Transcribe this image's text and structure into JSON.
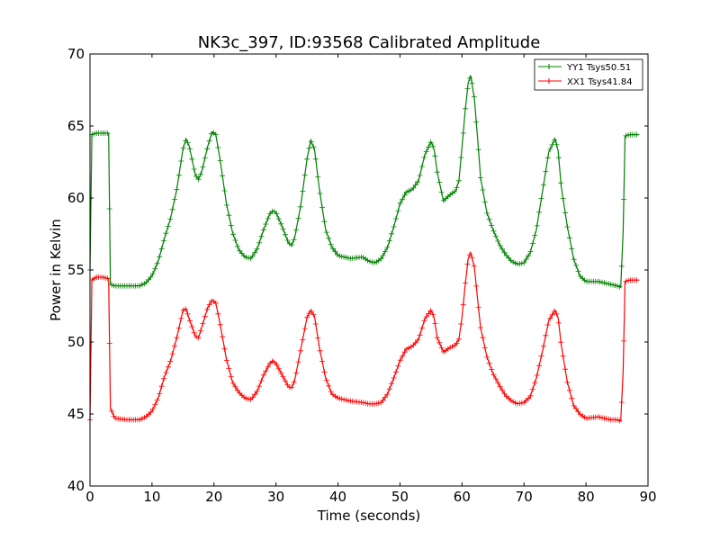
{
  "chart_data": {
    "type": "line",
    "title": "NK3c_397, ID:93568 Calibrated Amplitude",
    "xlabel": "Time (seconds)",
    "ylabel": "Power in Kelvin",
    "xlim": [
      0,
      90
    ],
    "ylim": [
      40,
      70
    ],
    "xticks": [
      0,
      10,
      20,
      30,
      40,
      50,
      60,
      70,
      80,
      90
    ],
    "yticks": [
      40,
      45,
      50,
      55,
      60,
      65,
      70
    ],
    "grid": false,
    "legend": "top-right",
    "marker": "+",
    "series": [
      {
        "name": "YY1 Tsys50.51",
        "color": "#008000",
        "points": [
          [
            0,
            55.0
          ],
          [
            0.3,
            64.4
          ],
          [
            1,
            64.5
          ],
          [
            2,
            64.5
          ],
          [
            3,
            64.5
          ],
          [
            3.3,
            54.0
          ],
          [
            4,
            53.9
          ],
          [
            6,
            53.9
          ],
          [
            8,
            53.9
          ],
          [
            9,
            54.1
          ],
          [
            10,
            54.6
          ],
          [
            11,
            55.6
          ],
          [
            12,
            57.2
          ],
          [
            13,
            58.6
          ],
          [
            14,
            60.6
          ],
          [
            15,
            63.4
          ],
          [
            15.5,
            64.1
          ],
          [
            16,
            63.6
          ],
          [
            17,
            61.6
          ],
          [
            17.5,
            61.3
          ],
          [
            18,
            61.8
          ],
          [
            19,
            63.6
          ],
          [
            19.7,
            64.6
          ],
          [
            20.3,
            64.4
          ],
          [
            21,
            62.6
          ],
          [
            22,
            59.6
          ],
          [
            23,
            57.6
          ],
          [
            24,
            56.4
          ],
          [
            25,
            55.9
          ],
          [
            26,
            55.8
          ],
          [
            27,
            56.5
          ],
          [
            28,
            57.8
          ],
          [
            29,
            58.9
          ],
          [
            29.5,
            59.1
          ],
          [
            30,
            59.0
          ],
          [
            31,
            58.0
          ],
          [
            32,
            56.9
          ],
          [
            32.5,
            56.7
          ],
          [
            33,
            57.2
          ],
          [
            34,
            59.5
          ],
          [
            35,
            62.7
          ],
          [
            35.6,
            64.0
          ],
          [
            36.2,
            63.4
          ],
          [
            37,
            60.6
          ],
          [
            38,
            57.8
          ],
          [
            39,
            56.6
          ],
          [
            40,
            56.0
          ],
          [
            42,
            55.8
          ],
          [
            44,
            55.9
          ],
          [
            45,
            55.6
          ],
          [
            46,
            55.5
          ],
          [
            47,
            55.8
          ],
          [
            48,
            56.6
          ],
          [
            49,
            58.0
          ],
          [
            50,
            59.6
          ],
          [
            51,
            60.4
          ],
          [
            52,
            60.6
          ],
          [
            53,
            61.2
          ],
          [
            54,
            63.0
          ],
          [
            55,
            63.9
          ],
          [
            55.5,
            63.4
          ],
          [
            56,
            61.8
          ],
          [
            57,
            59.8
          ],
          [
            58,
            60.2
          ],
          [
            59,
            60.5
          ],
          [
            59.5,
            61.2
          ],
          [
            60,
            63.5
          ],
          [
            60.5,
            66.0
          ],
          [
            61,
            68.0
          ],
          [
            61.4,
            68.5
          ],
          [
            62,
            66.9
          ],
          [
            62.5,
            64.2
          ],
          [
            63,
            61.4
          ],
          [
            64,
            59.0
          ],
          [
            65,
            57.8
          ],
          [
            66,
            56.8
          ],
          [
            67,
            56.1
          ],
          [
            68,
            55.6
          ],
          [
            69,
            55.4
          ],
          [
            70,
            55.5
          ],
          [
            71,
            56.2
          ],
          [
            72,
            57.8
          ],
          [
            73,
            60.5
          ],
          [
            74,
            63.2
          ],
          [
            75,
            64.1
          ],
          [
            75.5,
            63.3
          ],
          [
            76,
            60.8
          ],
          [
            77,
            58.0
          ],
          [
            78,
            55.8
          ],
          [
            79,
            54.6
          ],
          [
            80,
            54.2
          ],
          [
            82,
            54.2
          ],
          [
            84,
            54.0
          ],
          [
            85,
            53.9
          ],
          [
            85.6,
            53.8
          ],
          [
            86,
            57.7
          ],
          [
            86.3,
            64.3
          ],
          [
            87,
            64.4
          ],
          [
            88,
            64.4
          ],
          [
            88.5,
            64.4
          ]
        ]
      },
      {
        "name": "XX1 Tsys41.84",
        "color": "#ff0000",
        "points": [
          [
            0,
            44.6
          ],
          [
            0.3,
            54.3
          ],
          [
            1,
            54.5
          ],
          [
            2,
            54.5
          ],
          [
            3,
            54.4
          ],
          [
            3.3,
            45.4
          ],
          [
            4,
            44.7
          ],
          [
            6,
            44.6
          ],
          [
            8,
            44.6
          ],
          [
            9,
            44.8
          ],
          [
            10,
            45.2
          ],
          [
            11,
            46.1
          ],
          [
            12,
            47.6
          ],
          [
            13,
            48.7
          ],
          [
            14,
            50.3
          ],
          [
            15,
            52.2
          ],
          [
            15.5,
            52.3
          ],
          [
            16,
            51.6
          ],
          [
            17,
            50.4
          ],
          [
            17.5,
            50.3
          ],
          [
            18,
            51.0
          ],
          [
            19,
            52.4
          ],
          [
            19.7,
            52.9
          ],
          [
            20.3,
            52.7
          ],
          [
            21,
            51.2
          ],
          [
            22,
            48.8
          ],
          [
            23,
            47.2
          ],
          [
            24,
            46.5
          ],
          [
            25,
            46.1
          ],
          [
            26,
            46.0
          ],
          [
            27,
            46.6
          ],
          [
            28,
            47.7
          ],
          [
            29,
            48.5
          ],
          [
            29.5,
            48.7
          ],
          [
            30,
            48.5
          ],
          [
            31,
            47.7
          ],
          [
            32,
            46.9
          ],
          [
            32.5,
            46.8
          ],
          [
            33,
            47.3
          ],
          [
            34,
            49.5
          ],
          [
            35,
            51.7
          ],
          [
            35.6,
            52.2
          ],
          [
            36.2,
            51.8
          ],
          [
            37,
            49.6
          ],
          [
            38,
            47.5
          ],
          [
            39,
            46.4
          ],
          [
            40,
            46.1
          ],
          [
            42,
            45.9
          ],
          [
            44,
            45.8
          ],
          [
            45,
            45.7
          ],
          [
            46,
            45.7
          ],
          [
            47,
            45.8
          ],
          [
            48,
            46.4
          ],
          [
            49,
            47.5
          ],
          [
            50,
            48.7
          ],
          [
            51,
            49.5
          ],
          [
            52,
            49.7
          ],
          [
            53,
            50.2
          ],
          [
            54,
            51.6
          ],
          [
            55,
            52.2
          ],
          [
            55.5,
            51.7
          ],
          [
            56,
            50.3
          ],
          [
            57,
            49.3
          ],
          [
            58,
            49.6
          ],
          [
            59,
            49.8
          ],
          [
            59.5,
            50.2
          ],
          [
            60,
            51.7
          ],
          [
            60.5,
            53.9
          ],
          [
            61,
            55.8
          ],
          [
            61.4,
            56.2
          ],
          [
            62,
            55.2
          ],
          [
            62.5,
            53.0
          ],
          [
            63,
            51.0
          ],
          [
            64,
            49.0
          ],
          [
            65,
            47.8
          ],
          [
            66,
            47.0
          ],
          [
            67,
            46.3
          ],
          [
            68,
            45.9
          ],
          [
            69,
            45.7
          ],
          [
            70,
            45.8
          ],
          [
            71,
            46.2
          ],
          [
            72,
            47.5
          ],
          [
            73,
            49.4
          ],
          [
            74,
            51.5
          ],
          [
            75,
            52.2
          ],
          [
            75.5,
            51.7
          ],
          [
            76,
            49.8
          ],
          [
            77,
            47.2
          ],
          [
            78,
            45.6
          ],
          [
            79,
            45.0
          ],
          [
            80,
            44.7
          ],
          [
            82,
            44.8
          ],
          [
            84,
            44.6
          ],
          [
            85,
            44.6
          ],
          [
            85.6,
            44.5
          ],
          [
            86,
            48.0
          ],
          [
            86.3,
            54.2
          ],
          [
            87,
            54.3
          ],
          [
            88,
            54.3
          ],
          [
            88.5,
            54.3
          ]
        ]
      }
    ]
  }
}
